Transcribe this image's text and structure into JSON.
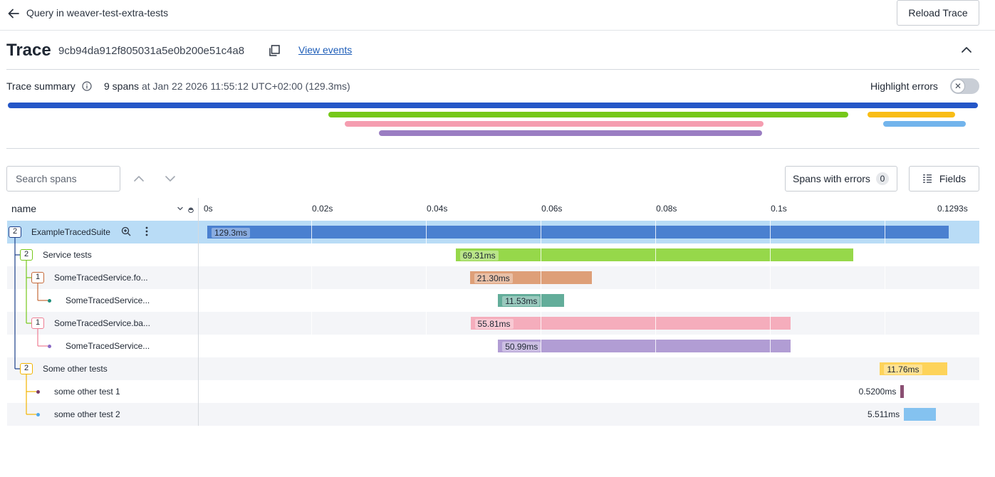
{
  "topbar": {
    "back_label": "Query in weaver-test-extra-tests",
    "reload_label": "Reload Trace"
  },
  "trace": {
    "title": "Trace",
    "id": "9cb94da912f805031a5e0b200e51c4a8",
    "view_events": "View events"
  },
  "summary": {
    "label": "Trace summary",
    "span_count": "9 spans",
    "at_text": "at Jan 22 2026 11:55:12 UTC+02:00 (129.3ms)",
    "highlight_errors_label": "Highlight errors",
    "highlight_errors_on": false
  },
  "mini_bars": [
    {
      "start": 0.0,
      "end": 129.3,
      "color": "#2456c7"
    },
    {
      "start": 42.7,
      "end": 112.0,
      "color": "#76c81a"
    },
    {
      "start": 114.6,
      "end": 126.3,
      "color": "#f9bd16"
    },
    {
      "start": 44.9,
      "end": 100.7,
      "color": "#f59db0"
    },
    {
      "start": 116.7,
      "end": 127.7,
      "color": "#72b4ec"
    },
    {
      "start": 49.5,
      "end": 100.5,
      "color": "#9a7dc2"
    }
  ],
  "toolbar": {
    "search_placeholder": "Search spans",
    "spans_with_errors_label": "Spans with errors",
    "errors_count": "0",
    "fields_label": "Fields"
  },
  "table": {
    "name_header": "name",
    "ticks": [
      "0s",
      "0.02s",
      "0.04s",
      "0.06s",
      "0.08s",
      "0.1s",
      "0.1293s"
    ],
    "total_ms": 129.3
  },
  "spans": [
    {
      "name": "ExampleTracedSuite",
      "depth": 0,
      "children": "2",
      "start": 0.0,
      "duration": 129.3,
      "label": "129.3ms",
      "color": "#4a80d0",
      "badge_color": "#1c3f8a",
      "selected": true
    },
    {
      "name": "Service tests",
      "depth": 1,
      "children": "2",
      "start": 43.3,
      "duration": 69.31,
      "label": "69.31ms",
      "color": "#96d84a",
      "badge_color": "#76c81a"
    },
    {
      "name": "SomeTracedService.fo...",
      "depth": 2,
      "children": "1",
      "start": 45.8,
      "duration": 21.3,
      "label": "21.30ms",
      "color": "#de9f78",
      "badge_color": "#c56a3a"
    },
    {
      "name": "SomeTracedService...",
      "depth": 3,
      "children": "",
      "start": 50.7,
      "duration": 11.53,
      "label": "11.53ms",
      "color": "#63ad9a",
      "badge_color": "#1e8e7a"
    },
    {
      "name": "SomeTracedService.ba...",
      "depth": 2,
      "children": "1",
      "start": 45.9,
      "duration": 55.81,
      "label": "55.81ms",
      "color": "#f5adbc",
      "badge_color": "#ee7d93"
    },
    {
      "name": "SomeTracedService...",
      "depth": 3,
      "children": "",
      "start": 50.7,
      "duration": 50.99,
      "label": "50.99ms",
      "color": "#b19dd4",
      "badge_color": "#8a69c4"
    },
    {
      "name": "Some other tests",
      "depth": 1,
      "children": "2",
      "start": 117.3,
      "duration": 11.76,
      "label": "11.76ms",
      "color": "#fdd35a",
      "badge_color": "#f2b400"
    },
    {
      "name": "some other test 1",
      "depth": 2,
      "children": "",
      "start": 120.9,
      "duration": 0.52,
      "label": "0.5200ms",
      "color": "#8a4f72",
      "badge_color": "#7a3a64"
    },
    {
      "name": "some other test 2",
      "depth": 2,
      "children": "",
      "start": 121.5,
      "duration": 5.511,
      "label": "5.511ms",
      "color": "#84c2f0",
      "badge_color": "#4fa8e8"
    }
  ]
}
